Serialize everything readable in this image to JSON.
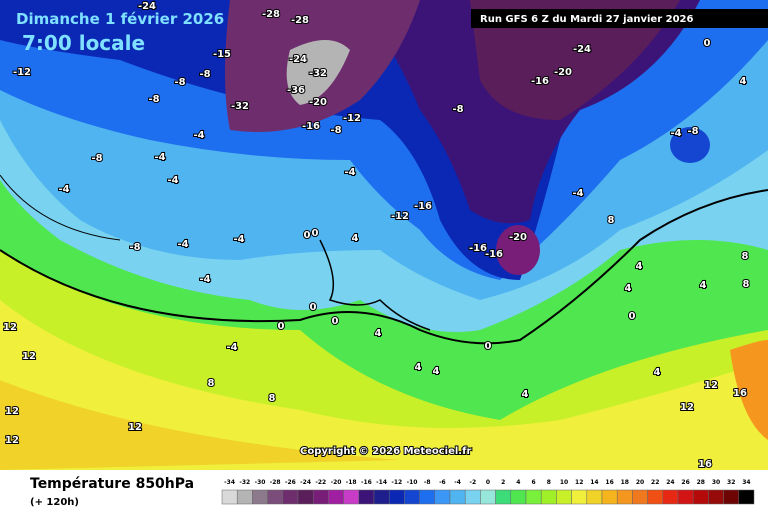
{
  "header": {
    "title": "Dimanche 1 février 2026",
    "subtitle": "7:00 locale",
    "run": "Run GFS 6 Z du Mardi 27 janvier 2026"
  },
  "copyright": "Copyright © 2026 Meteociel.fr",
  "footer": {
    "title": "Température 850hPa",
    "subtitle": "(+ 120h)"
  },
  "map_labels": [
    -24,
    -28,
    -28,
    -15,
    -12,
    -8,
    -8,
    -8,
    -24,
    -32,
    -36,
    -32,
    -20,
    -16,
    -12,
    -8,
    -24,
    -20,
    -16,
    -8,
    -4,
    -8,
    -4,
    -4,
    -4,
    -4,
    -4,
    -8,
    -4,
    0,
    4,
    -16,
    -12,
    -16,
    -20,
    -16,
    -8,
    -4,
    -4,
    -4,
    0,
    0,
    4,
    0,
    0,
    0,
    4,
    -4,
    0,
    4,
    4,
    4,
    8,
    8,
    12,
    12,
    12,
    12,
    12,
    8,
    4,
    4,
    4,
    8,
    12,
    12,
    16,
    16,
    8,
    4,
    0
  ],
  "legend": {
    "values": [
      -34,
      -32,
      -30,
      -28,
      -26,
      -24,
      -22,
      -20,
      -18,
      -16,
      -14,
      -12,
      -10,
      -8,
      -6,
      -4,
      -2,
      0,
      2,
      4,
      6,
      8,
      10,
      12,
      14,
      16,
      18,
      20,
      22,
      24,
      26,
      28,
      30,
      32,
      34
    ],
    "colors": [
      "#d9d9d9",
      "#b4b4b4",
      "#8c7a8c",
      "#7a4d7a",
      "#6e2e6e",
      "#5a1e5a",
      "#781e78",
      "#a01ea0",
      "#c83cc8",
      "#3c1478",
      "#1e1e8c",
      "#0a28b4",
      "#1446d2",
      "#1e6ef0",
      "#3c96f5",
      "#50b4f0",
      "#78d2f0",
      "#96e6dc",
      "#3cdc78",
      "#50e650",
      "#78f03c",
      "#a0f028",
      "#c8f028",
      "#f0f03c",
      "#f0d228",
      "#f5b41e",
      "#f5961e",
      "#f0781e",
      "#f05014",
      "#e62814",
      "#d21414",
      "#b40a0a",
      "#960a0a",
      "#6e0505",
      "#000000"
    ]
  }
}
